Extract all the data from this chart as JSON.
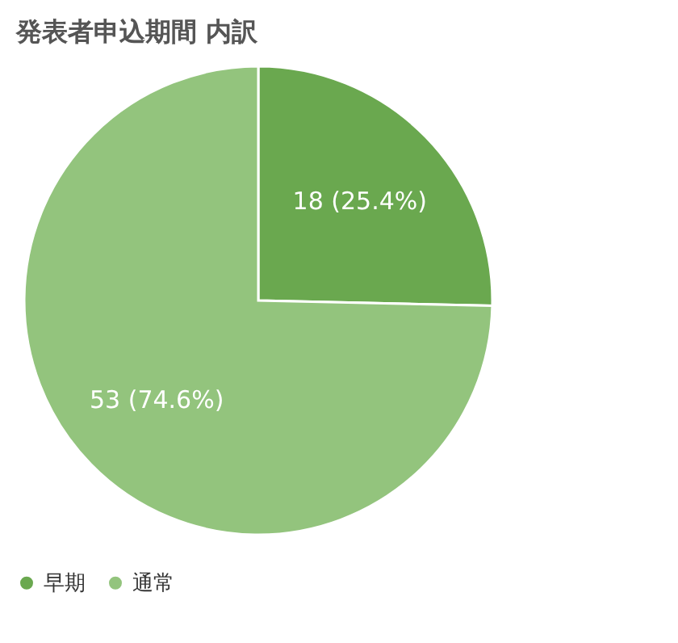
{
  "chart_data": {
    "type": "pie",
    "title": "発表者申込期間 内訳",
    "categories": [
      "早期",
      "通常"
    ],
    "values": [
      18,
      53
    ],
    "colors": [
      "#6aa84f",
      "#93c47d"
    ],
    "value_labels": [
      "18 (25.4%)",
      "53 (74.6%)"
    ],
    "legend": "bottom"
  }
}
